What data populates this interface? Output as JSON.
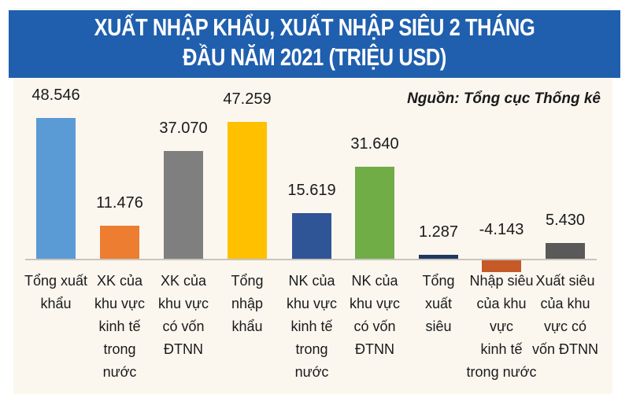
{
  "title_line1": "XUẤT NHẬP KHẨU, XUẤT NHẬP SIÊU 2 THÁNG",
  "title_line2": "ĐẦU NĂM 2021 (TRIỆU USD)",
  "source": "Nguồn: Tổng cục Thống kê",
  "chart_data": {
    "type": "bar",
    "title": "XUẤT NHẬP KHẨU, XUẤT NHẬP SIÊU 2 THÁNG ĐẦU NĂM 2021 (TRIỆU USD)",
    "xlabel": "",
    "ylabel": "Triệu USD",
    "grid": false,
    "annotations": [
      "Nguồn: Tổng cục Thống kê"
    ],
    "categories": [
      "Tổng xuất khẩu",
      "XK của khu vực kinh tế trong nước",
      "XK của khu vực có vốn ĐTNN",
      "Tổng nhập khẩu",
      "NK của khu vực kinh tế trong nước",
      "NK của khu vực có vốn ĐTNN",
      "Tổng xuất siêu",
      "Nhập siêu của khu vực kinh tế trong nước",
      "Xuất siêu của khu vực có vốn ĐTNN"
    ],
    "values": [
      48546,
      11476,
      37070,
      47259,
      15619,
      31640,
      1287,
      -4143,
      5430
    ],
    "value_labels": [
      "48.546",
      "11.476",
      "37.070",
      "47.259",
      "15.619",
      "31.640",
      "1.287",
      "-4.143",
      "5.430"
    ],
    "colors": [
      "#5b9bd5",
      "#ed7d31",
      "#7f7f7f",
      "#ffc000",
      "#2f5597",
      "#70ad47",
      "#1f3864",
      "#c55a28",
      "#595959"
    ]
  },
  "labels": [
    [
      "Tổng xuất",
      "khẩu"
    ],
    [
      "XK của",
      "khu vực",
      "kinh tế",
      "trong",
      "nước"
    ],
    [
      "XK của",
      "khu vực",
      "có vốn",
      "ĐTNN"
    ],
    [
      "Tổng",
      "nhập",
      "khẩu"
    ],
    [
      "NK của",
      "khu vực",
      "kinh tế",
      "trong",
      "nước"
    ],
    [
      "NK của",
      "khu vực",
      "có vốn",
      "ĐTNN"
    ],
    [
      "Tổng",
      "xuất",
      "siêu"
    ],
    [
      "Nhập siêu",
      "của khu",
      "vực",
      "kinh tế",
      "trong nước"
    ],
    [
      "Xuất siêu",
      "của khu",
      "vực có",
      "vốn ĐTNN"
    ]
  ]
}
